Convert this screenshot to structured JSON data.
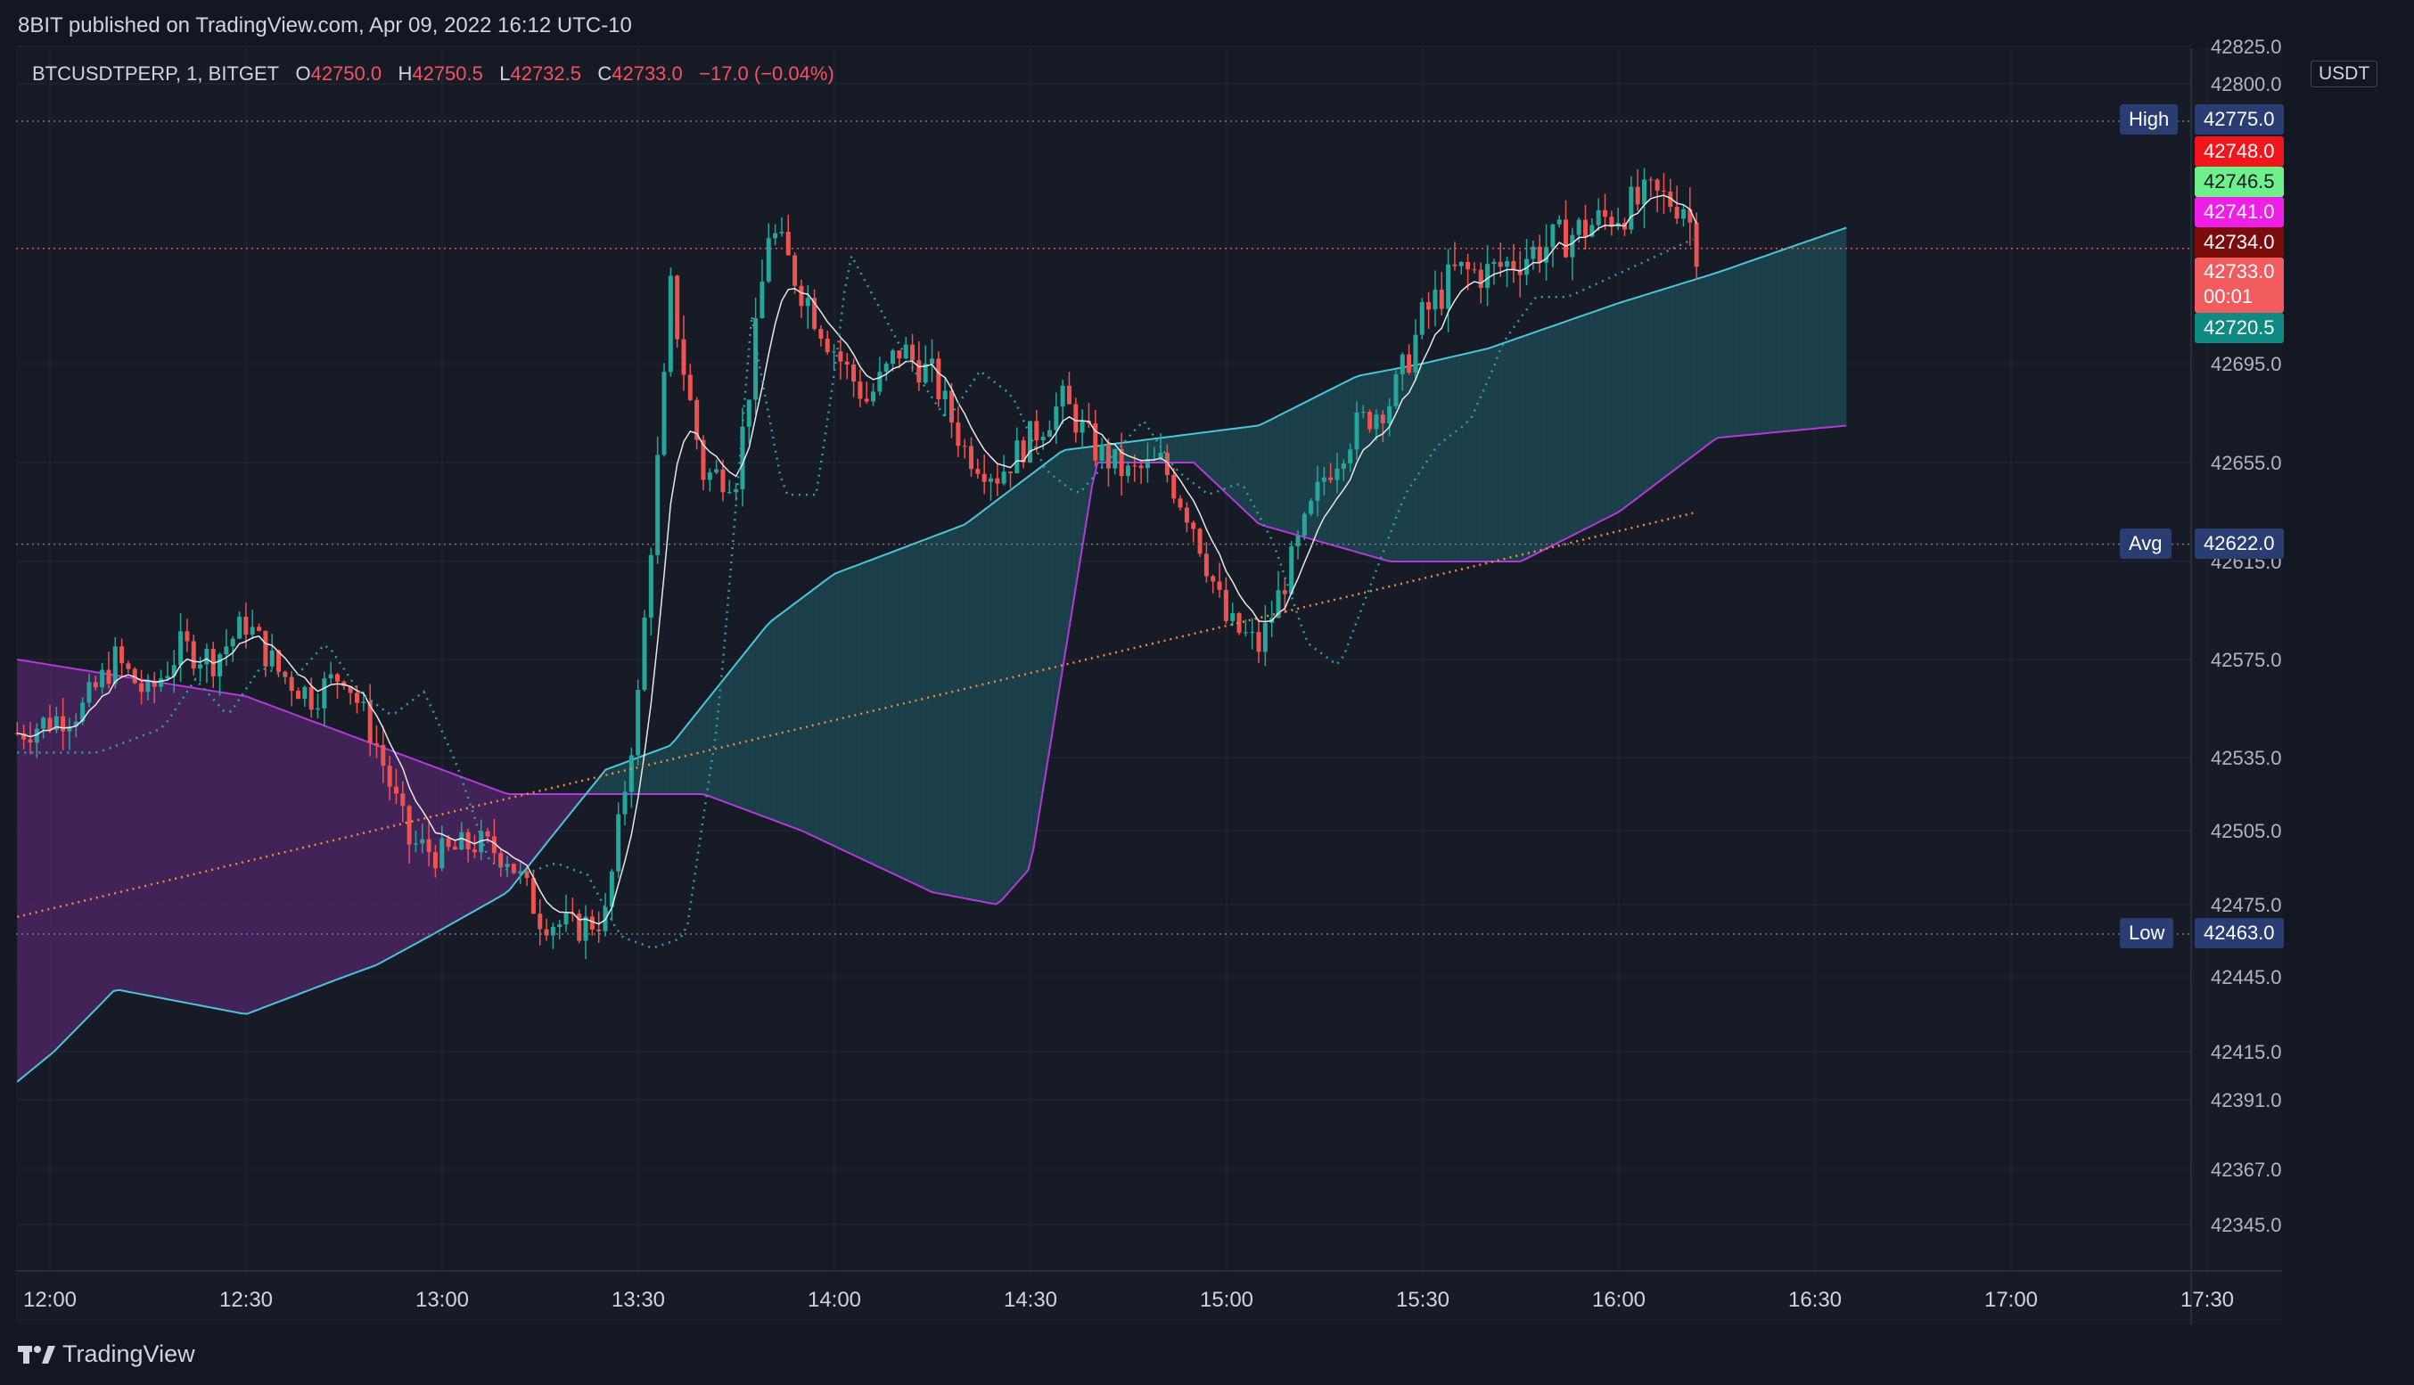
{
  "header": {
    "published": "8BIT published on TradingView.com, Apr 09, 2022 16:12 UTC-10"
  },
  "legend": {
    "symbol": "BTCUSDTPERP, 1, BITGET",
    "o_label": "O",
    "o_value": "42750.0",
    "h_label": "H",
    "h_value": "42750.5",
    "l_label": "L",
    "l_value": "42732.5",
    "c_label": "C",
    "c_value": "42733.0",
    "change": "−17.0 (−0.04%)"
  },
  "currency_label": "USDT",
  "footer": {
    "brand": "TradingView",
    "logo_icon": "tradingview-logo-icon"
  },
  "colors": {
    "background": "#131722",
    "up": "#26a69a",
    "down": "#ef5350",
    "bb_fill": "#1e4a55",
    "purple_fill": "#5a2a6e",
    "green_fill": "#2c5a2a"
  },
  "price_tags": [
    {
      "label": "High",
      "value": "42775.0",
      "bg": "#2a3d72",
      "fg": "#ffffff"
    },
    {
      "label": "",
      "value": "42748.0",
      "bg": "#f0161b",
      "fg": "#ffffff"
    },
    {
      "label": "",
      "value": "42746.5",
      "bg": "#6df28b",
      "fg": "#131722"
    },
    {
      "label": "",
      "value": "42741.0",
      "bg": "#f01fe8",
      "fg": "#ffffff"
    },
    {
      "label": "",
      "value": "42734.0",
      "bg": "#7a0c0c",
      "fg": "#ffffff"
    },
    {
      "label": "",
      "value": "42733.0",
      "sub": "00:01",
      "bg": "#f25c5f",
      "fg": "#ffffff"
    },
    {
      "label": "",
      "value": "42720.5",
      "bg": "#0e8a82",
      "fg": "#ffffff"
    },
    {
      "label": "Avg",
      "value": "42622.0",
      "bg": "#2a3d72",
      "fg": "#ffffff"
    },
    {
      "label": "Low",
      "value": "42463.0",
      "bg": "#2a3d72",
      "fg": "#ffffff"
    }
  ],
  "chart_data": {
    "type": "line",
    "title": "BTCUSDTPERP, 1, BITGET",
    "y_ticks": [
      "42825.0",
      "42800.0",
      "42695.0",
      "42655.0",
      "42615.0",
      "42575.0",
      "42535.0",
      "42505.0",
      "42475.0",
      "42445.0",
      "42415.0",
      "42391.0",
      "42367.0",
      "42345.0"
    ],
    "x_ticks": [
      "12:00",
      "12:30",
      "13:00",
      "13:30",
      "14:00",
      "14:30",
      "15:00",
      "15:30",
      "16:00",
      "16:30",
      "17:00",
      "17:30"
    ],
    "ylim": [
      42330,
      42830
    ],
    "reference_lines": {
      "high": 42775.0,
      "last": 42733.0,
      "avg": 42622.0,
      "low": 42463.0
    },
    "grid": true,
    "series": [
      {
        "type": "candlestick",
        "x_start": "11:55",
        "x_end": "16:12",
        "close_path": [
          [
            "11:55",
            42545
          ],
          [
            "12:05",
            42555
          ],
          [
            "12:10",
            42575
          ],
          [
            "12:15",
            42560
          ],
          [
            "12:20",
            42580
          ],
          [
            "12:25",
            42575
          ],
          [
            "12:30",
            42590
          ],
          [
            "12:35",
            42570
          ],
          [
            "12:40",
            42560
          ],
          [
            "12:45",
            42570
          ],
          [
            "12:50",
            42540
          ],
          [
            "12:55",
            42500
          ],
          [
            "13:00",
            42495
          ],
          [
            "13:05",
            42500
          ],
          [
            "13:10",
            42495
          ],
          [
            "13:15",
            42470
          ],
          [
            "13:20",
            42465
          ],
          [
            "13:25",
            42470
          ],
          [
            "13:30",
            42560
          ],
          [
            "13:35",
            42720
          ],
          [
            "13:40",
            42650
          ],
          [
            "13:45",
            42650
          ],
          [
            "13:50",
            42740
          ],
          [
            "13:55",
            42720
          ],
          [
            "14:00",
            42700
          ],
          [
            "14:05",
            42680
          ],
          [
            "14:10",
            42700
          ],
          [
            "14:15",
            42690
          ],
          [
            "14:20",
            42660
          ],
          [
            "14:25",
            42650
          ],
          [
            "14:30",
            42665
          ],
          [
            "14:35",
            42680
          ],
          [
            "14:40",
            42660
          ],
          [
            "14:45",
            42650
          ],
          [
            "14:50",
            42655
          ],
          [
            "14:55",
            42630
          ],
          [
            "15:00",
            42590
          ],
          [
            "15:05",
            42580
          ],
          [
            "15:10",
            42615
          ],
          [
            "15:15",
            42650
          ],
          [
            "15:20",
            42670
          ],
          [
            "15:25",
            42680
          ],
          [
            "15:30",
            42710
          ],
          [
            "15:35",
            42725
          ],
          [
            "15:40",
            42725
          ],
          [
            "15:45",
            42730
          ],
          [
            "15:50",
            42735
          ],
          [
            "15:55",
            42740
          ],
          [
            "16:00",
            42745
          ],
          [
            "16:05",
            42750
          ],
          [
            "16:10",
            42748
          ],
          [
            "16:12",
            42733
          ]
        ]
      },
      {
        "type": "bollinger",
        "upper": [
          [
            "11:55",
            42575
          ],
          [
            "12:30",
            42560
          ],
          [
            "12:50",
            42540
          ],
          [
            "13:10",
            42520
          ],
          [
            "13:25",
            42520
          ],
          [
            "13:40",
            42520
          ],
          [
            "13:55",
            42505
          ],
          [
            "14:15",
            42480
          ],
          [
            "14:25",
            42475
          ],
          [
            "14:30",
            42490
          ],
          [
            "14:40",
            42655
          ],
          [
            "14:55",
            42655
          ],
          [
            "15:05",
            42630
          ],
          [
            "15:25",
            42615
          ],
          [
            "15:45",
            42615
          ],
          [
            "16:00",
            42635
          ],
          [
            "16:15",
            42665
          ],
          [
            "16:35",
            42670
          ]
        ],
        "lower": [
          [
            "11:55",
            42400
          ],
          [
            "12:10",
            42440
          ],
          [
            "12:30",
            42430
          ],
          [
            "12:50",
            42450
          ],
          [
            "13:10",
            42480
          ],
          [
            "13:25",
            42530
          ],
          [
            "13:35",
            42540
          ],
          [
            "13:50",
            42590
          ],
          [
            "14:00",
            42610
          ],
          [
            "14:10",
            42620
          ],
          [
            "14:20",
            42630
          ],
          [
            "14:35",
            42660
          ],
          [
            "14:50",
            42665
          ],
          [
            "15:05",
            42670
          ],
          [
            "15:20",
            42690
          ],
          [
            "15:40",
            42700
          ],
          [
            "16:00",
            42715
          ],
          [
            "16:15",
            42725
          ],
          [
            "16:35",
            42740
          ]
        ]
      }
    ]
  }
}
